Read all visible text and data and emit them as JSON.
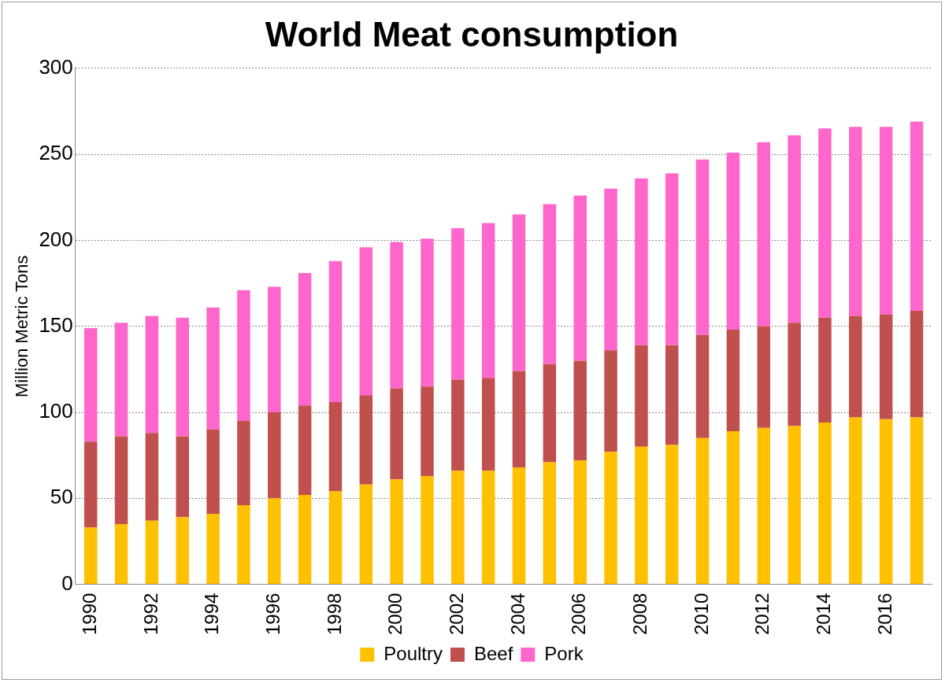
{
  "chart_data": {
    "type": "bar",
    "title": "World Meat consumption",
    "ylabel": "Million Metric Tons",
    "categories": [
      "1990",
      null,
      "1992",
      null,
      "1994",
      null,
      "1996",
      null,
      "1998",
      null,
      "2000",
      null,
      "2002",
      null,
      "2004",
      null,
      "2006",
      null,
      "2008",
      null,
      "2010",
      null,
      "2012",
      null,
      "2014",
      null,
      "2016",
      null
    ],
    "stacked": true,
    "ylim": [
      0,
      300
    ],
    "yticks": [
      0,
      50,
      100,
      150,
      200,
      250,
      300
    ],
    "grid": "y",
    "legend": "bottom",
    "series": [
      {
        "name": "Poultry",
        "color": "#ffc000",
        "values": [
          33,
          35,
          37,
          39,
          41,
          46,
          50,
          52,
          54,
          58,
          61,
          63,
          66,
          66,
          68,
          71,
          72,
          77,
          80,
          81,
          85,
          89,
          91,
          92,
          94,
          97,
          96,
          97
        ]
      },
      {
        "name": "Beef",
        "color": "#c0504d",
        "values": [
          50,
          51,
          51,
          47,
          49,
          49,
          50,
          52,
          52,
          52,
          53,
          52,
          53,
          54,
          56,
          57,
          58,
          59,
          59,
          58,
          60,
          59,
          59,
          60,
          61,
          59,
          61,
          62
        ]
      },
      {
        "name": "Pork",
        "color": "#ff66cc",
        "values": [
          66,
          66,
          68,
          69,
          71,
          76,
          73,
          77,
          82,
          86,
          85,
          86,
          88,
          90,
          91,
          93,
          96,
          94,
          97,
          100,
          102,
          103,
          107,
          109,
          110,
          110,
          109,
          110
        ]
      }
    ]
  }
}
